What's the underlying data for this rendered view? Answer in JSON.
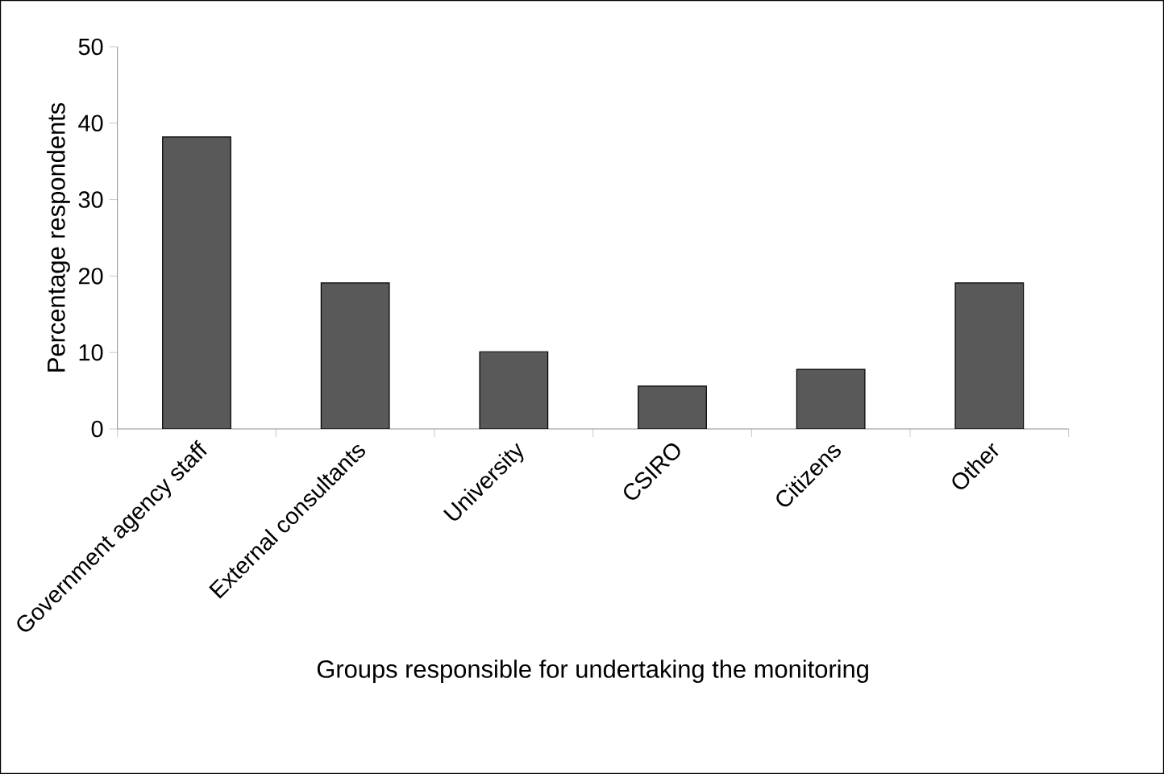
{
  "chart_data": {
    "type": "bar",
    "xlabel": "Groups responsible for undertaking the monitoring",
    "ylabel": "Percentage respondents",
    "categories": [
      "Government agency staff",
      "External consultants",
      "University",
      "CSIRO",
      "Citizens",
      "Other"
    ],
    "values": [
      38.2,
      19.1,
      10.1,
      5.6,
      7.8,
      19.1
    ],
    "color": "#595959",
    "ylim": [
      0,
      50
    ],
    "yticks": [
      0,
      10,
      20,
      30,
      40,
      50
    ],
    "grid": false
  }
}
